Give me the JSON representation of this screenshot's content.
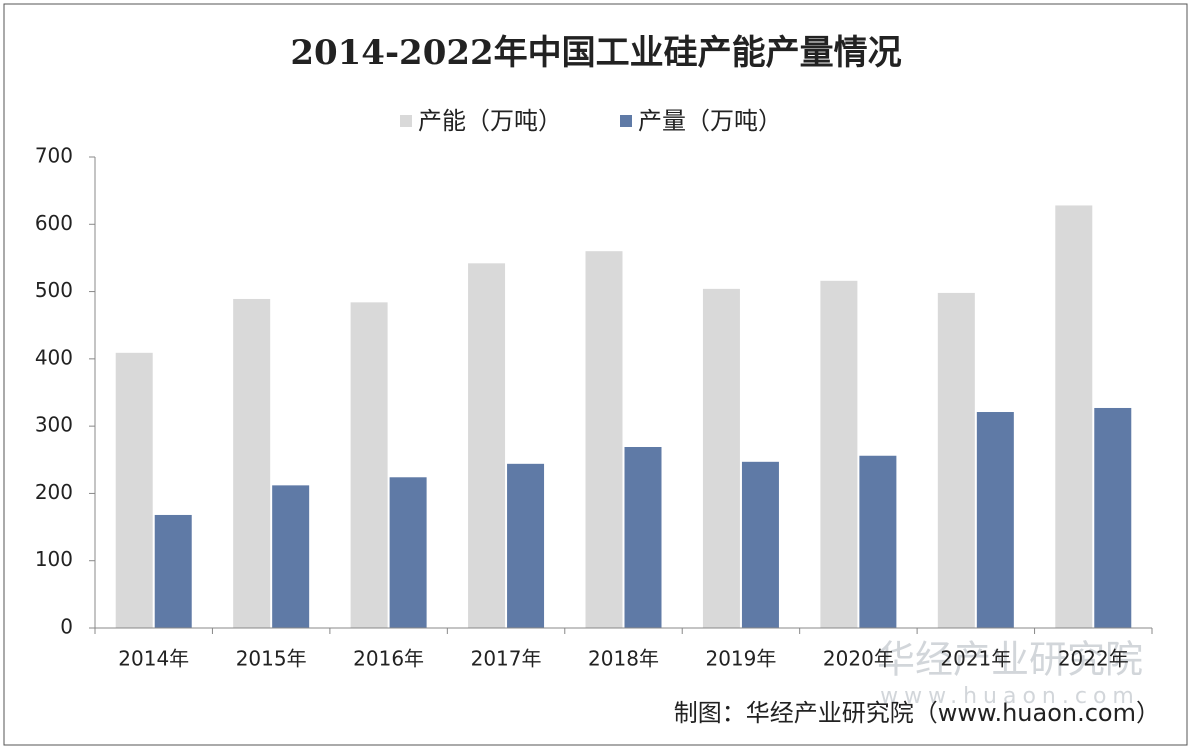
{
  "chart_data": {
    "type": "bar",
    "title": "2014-2022年中国工业硅产能产量情况",
    "categories": [
      "2014年",
      "2015年",
      "2016年",
      "2017年",
      "2018年",
      "2019年",
      "2020年",
      "2021年",
      "2022年"
    ],
    "series": [
      {
        "name": "产能（万吨）",
        "color": "#d9d9d9",
        "values": [
          409,
          489,
          484,
          542,
          560,
          504,
          516,
          498,
          628
        ]
      },
      {
        "name": "产量（万吨）",
        "color": "#5f7aa6",
        "values": [
          168,
          212,
          224,
          244,
          269,
          247,
          256,
          321,
          327
        ]
      }
    ],
    "ylim": [
      0,
      700
    ],
    "yticks": [
      0,
      100,
      200,
      300,
      400,
      500,
      600,
      700
    ],
    "grid": false,
    "legend": "top",
    "source": "制图：华经产业研究院（www.huaon.com）",
    "watermark": {
      "name": "华经产业研究院",
      "url": "www.huaon.com"
    }
  }
}
